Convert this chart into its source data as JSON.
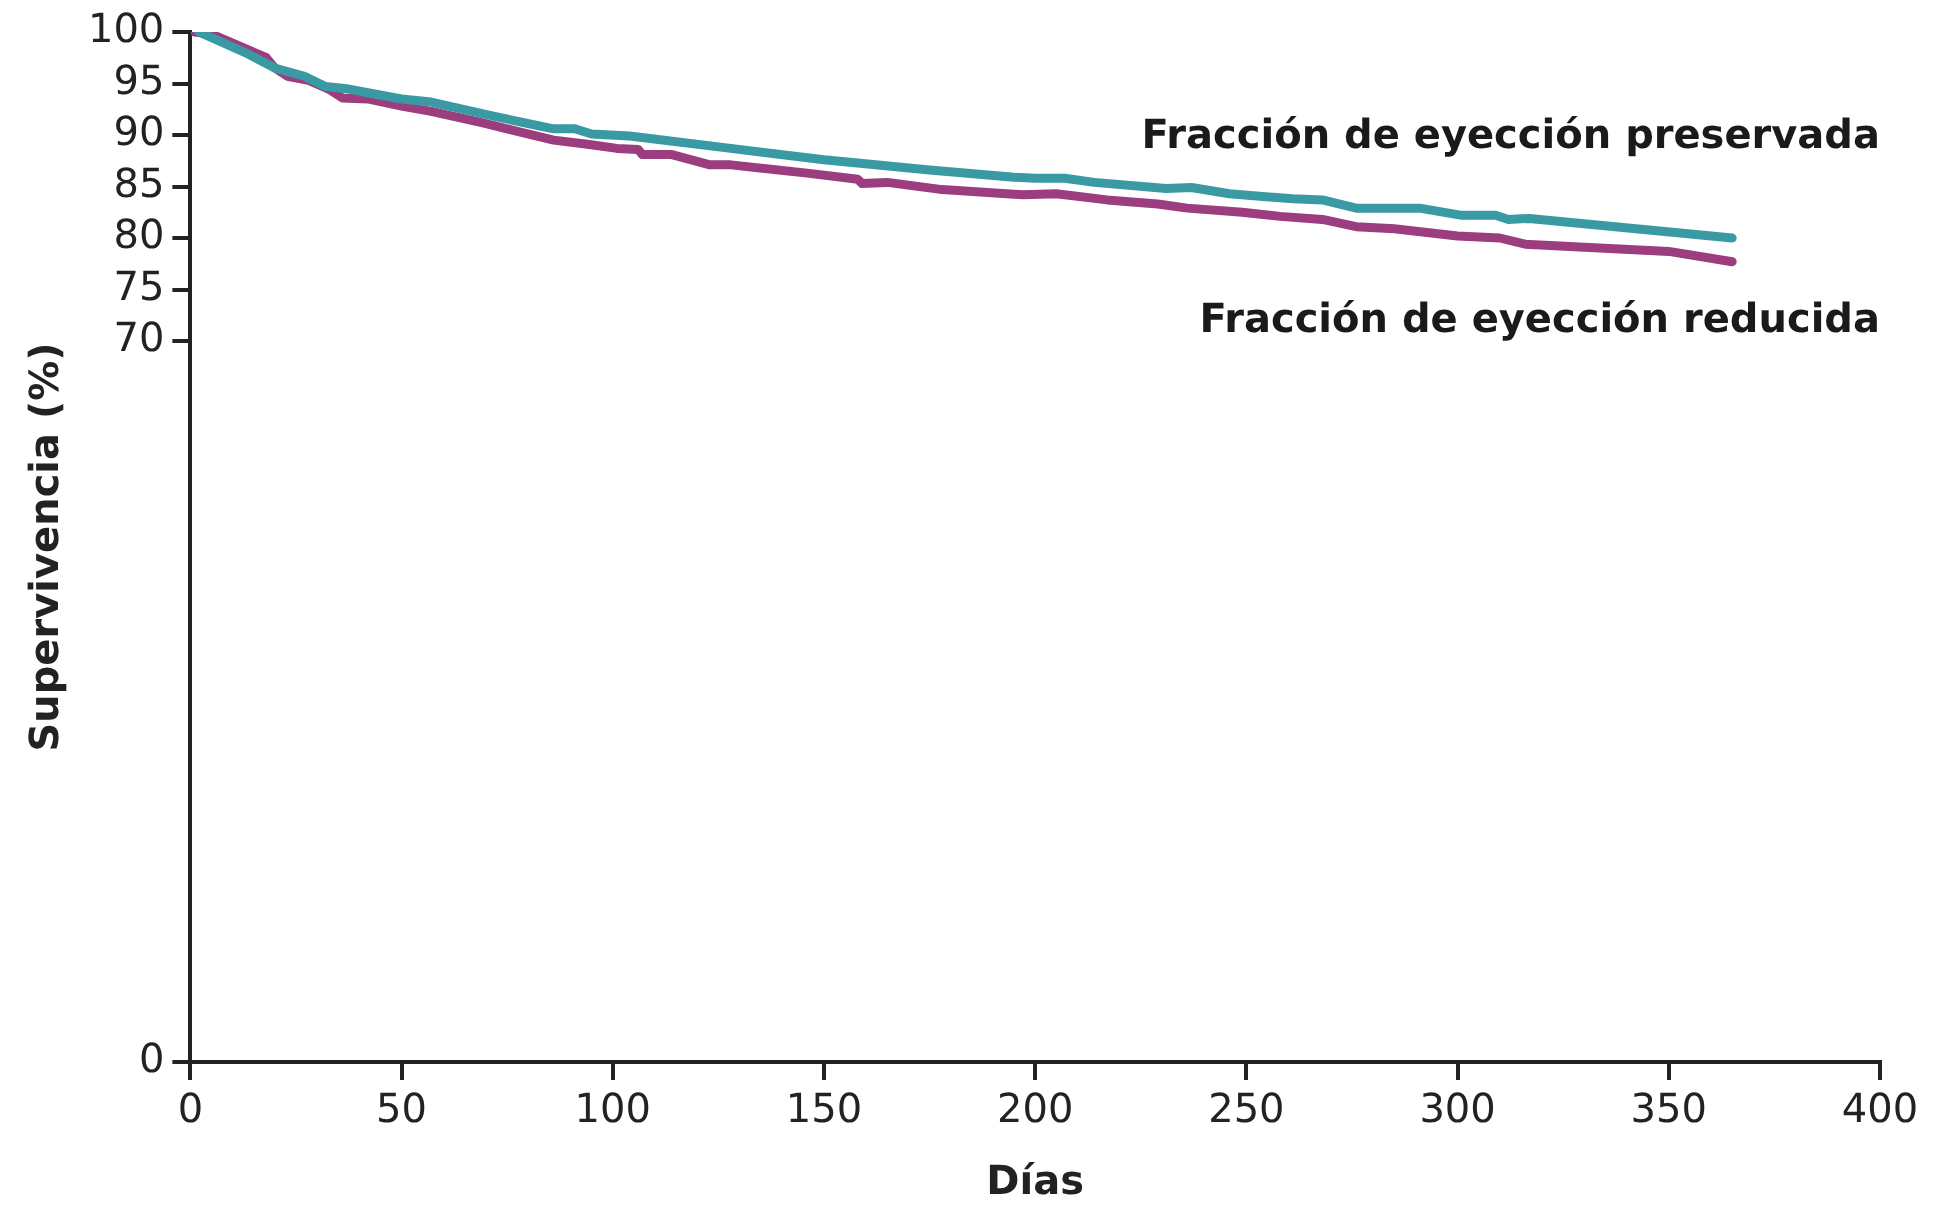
{
  "chart_data": {
    "type": "line",
    "xlabel": "Días",
    "ylabel": "Supervivencia (%)",
    "xlim": [
      0,
      400
    ],
    "xticks": [
      0,
      50,
      100,
      150,
      200,
      250,
      300,
      350,
      400
    ],
    "ylim": [
      0,
      100
    ],
    "yticks": [
      0,
      70,
      75,
      80,
      85,
      90,
      95,
      100
    ],
    "grid": false,
    "legend": false,
    "marker": "none",
    "line_style": "solid",
    "series": [
      {
        "name": "Fracción de eyección preservada",
        "color": "#3a9aa3",
        "x": [
          2,
          13,
          20,
          27,
          32,
          37,
          42,
          50,
          57,
          72,
          86,
          91,
          95,
          104,
          126,
          150,
          175,
          195,
          200,
          207,
          214,
          231,
          237,
          246,
          261,
          268,
          276,
          291,
          301,
          309,
          312,
          317,
          365
        ],
        "values": [
          100,
          98,
          96.5,
          95.7,
          94.7,
          94.5,
          94.1,
          93.5,
          93.2,
          91.8,
          90.6,
          90.6,
          90.1,
          89.9,
          88.8,
          87.6,
          86.6,
          85.9,
          85.8,
          85.8,
          85.4,
          84.8,
          84.9,
          84.3,
          83.8,
          83.7,
          82.9,
          82.9,
          82.2,
          82.2,
          81.8,
          81.9,
          80.0
        ]
      },
      {
        "name": "Fracción de eyección reducida",
        "color": "#9b3d7f",
        "x": [
          1,
          5,
          18,
          20,
          23,
          28,
          33,
          36,
          42,
          50,
          57,
          69,
          86,
          94,
          101,
          106,
          107,
          114,
          123,
          128,
          146,
          158,
          159,
          165,
          178,
          197,
          205,
          217,
          229,
          236,
          249,
          258,
          268,
          276,
          285,
          300,
          310,
          316,
          350,
          365
        ],
        "values": [
          100,
          99.8,
          97.5,
          96.5,
          95.7,
          95.3,
          94.4,
          93.6,
          93.5,
          92.8,
          92.3,
          91.2,
          89.5,
          89.1,
          88.7,
          88.6,
          88.1,
          88.1,
          87.1,
          87.1,
          86.3,
          85.7,
          85.3,
          85.4,
          84.7,
          84.2,
          84.3,
          83.7,
          83.3,
          82.9,
          82.5,
          82.1,
          81.8,
          81.1,
          80.9,
          80.2,
          80.0,
          79.4,
          78.7,
          77.7
        ]
      }
    ]
  }
}
